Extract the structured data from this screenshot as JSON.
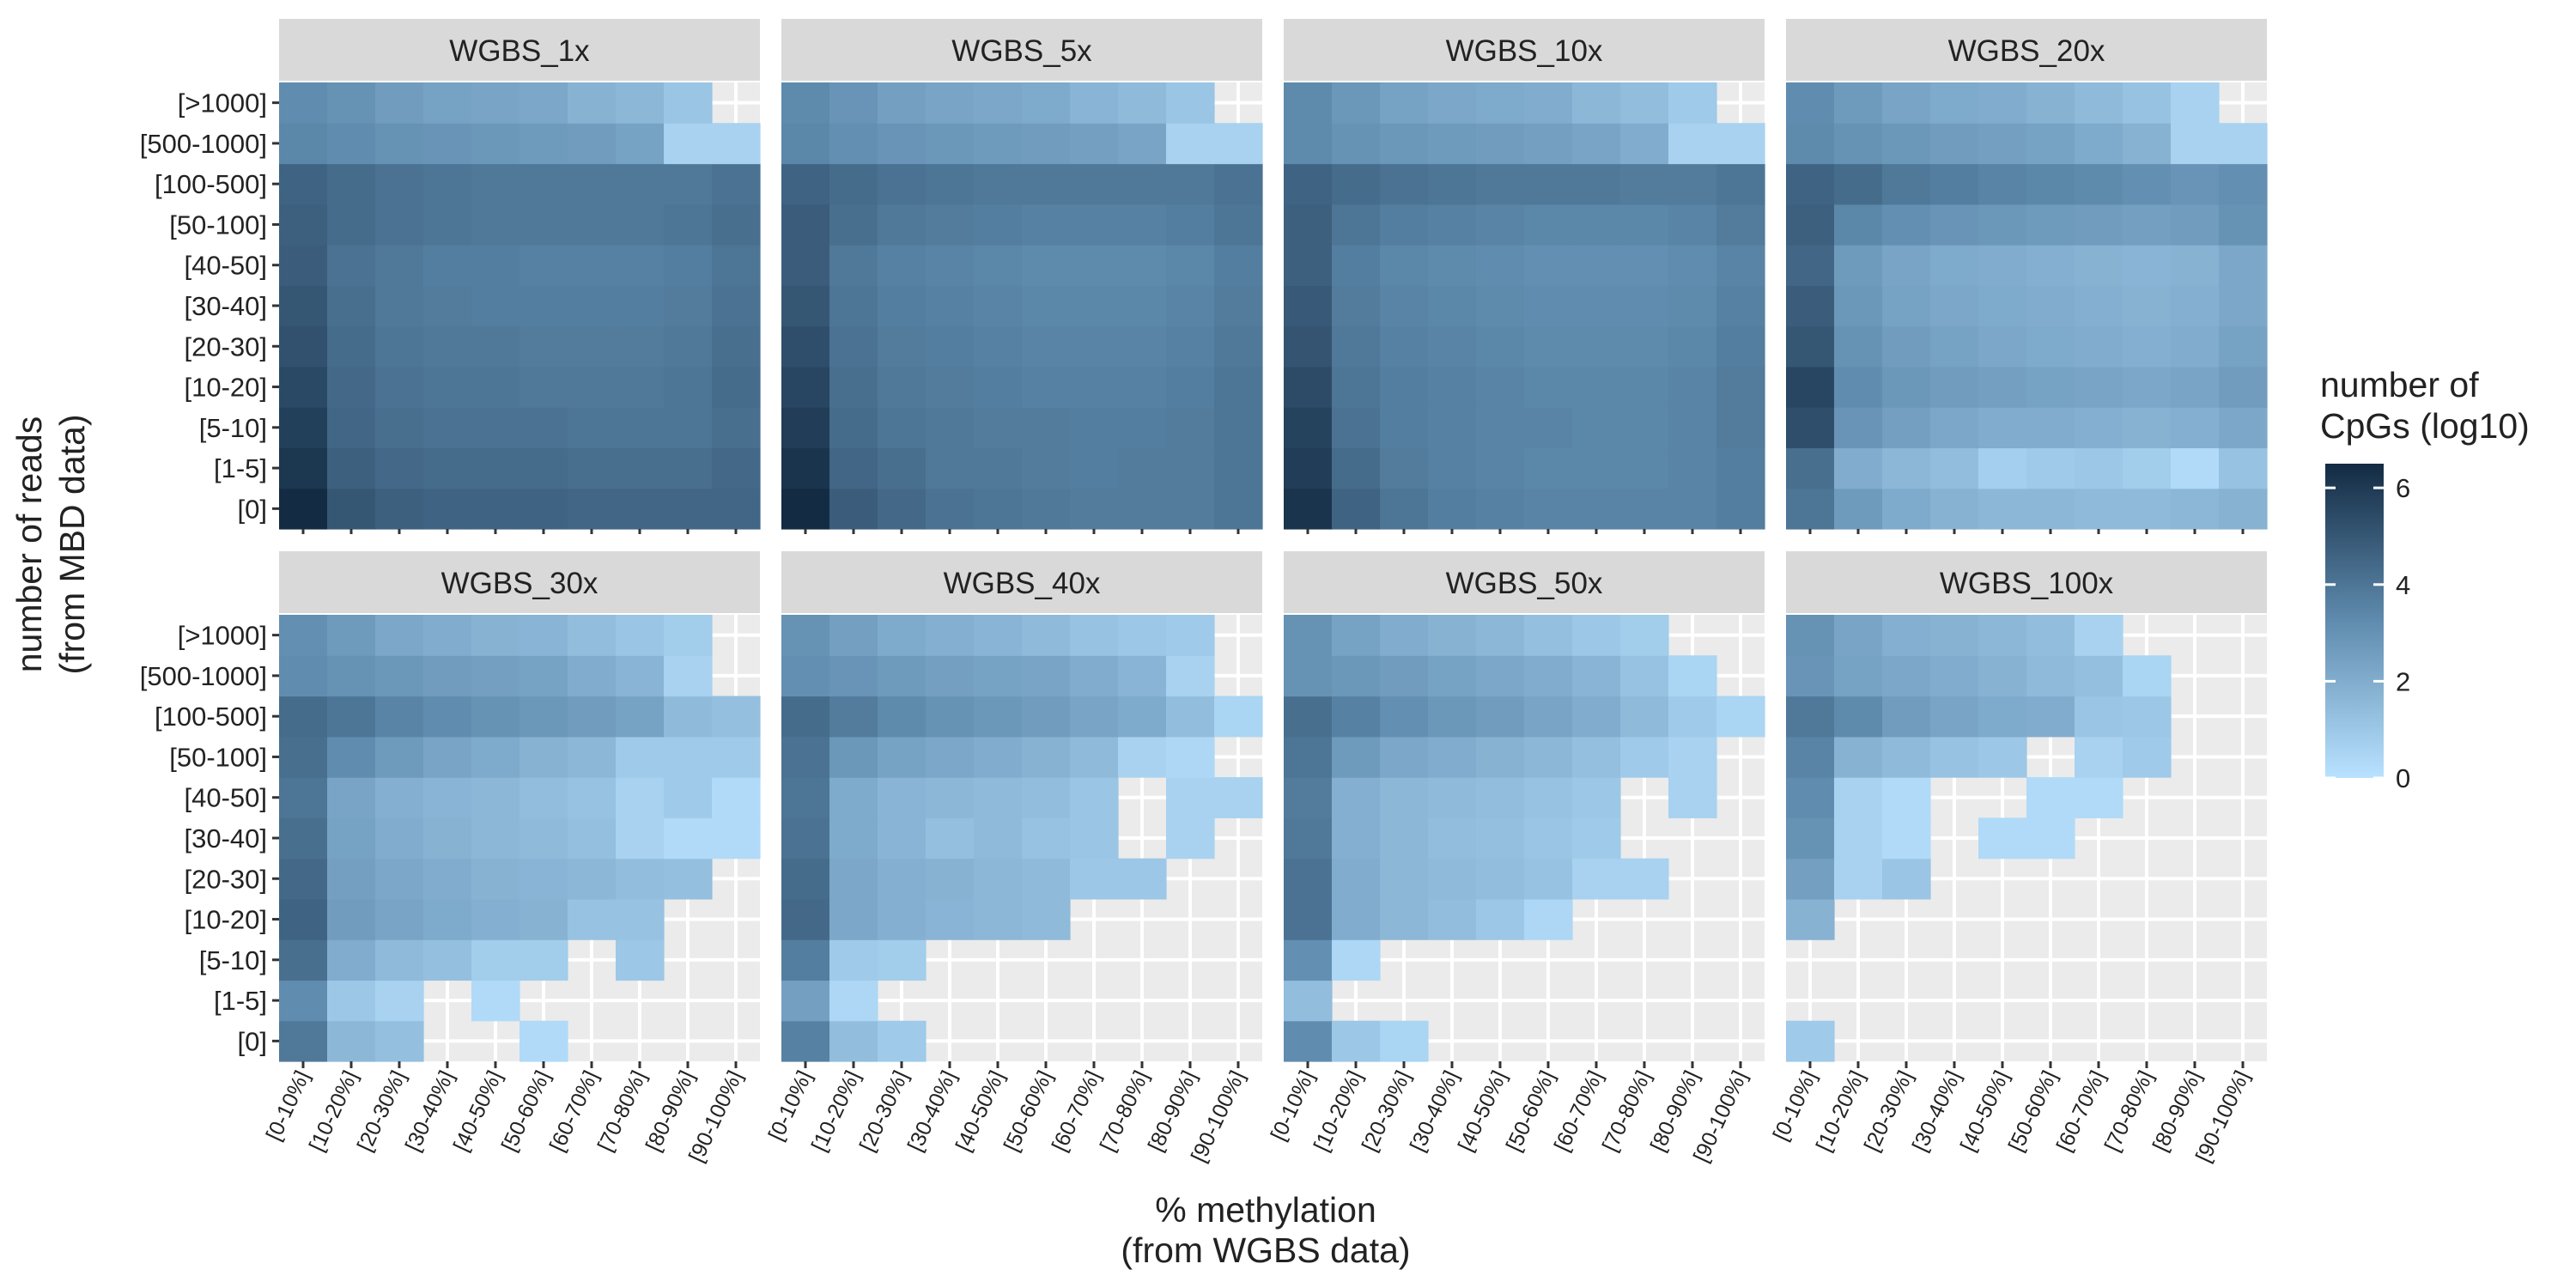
{
  "chart_data": {
    "type": "heatmap",
    "x_label_line1": "% methylation",
    "x_label_line2": "(from WGBS data)",
    "y_label_line1": "number of reads",
    "y_label_line2": "(from MBD data)",
    "legend": {
      "title_line1": "number of",
      "title_line2": "CpGs (log10)",
      "ticks": [
        0,
        2,
        4,
        6
      ],
      "range": [
        0,
        6.5
      ],
      "low_color": "#B8E2FF",
      "high_color": "#132B43",
      "position": "right"
    },
    "x_categories": [
      "[0-10%]",
      "[10-20%]",
      "[20-30%]",
      "[30-40%]",
      "[40-50%]",
      "[50-60%]",
      "[60-70%]",
      "[70-80%]",
      "[80-90%]",
      "[90-100%]"
    ],
    "y_categories": [
      "[0]",
      "[1-5]",
      "[5-10]",
      "[10-20]",
      "[20-30]",
      "[30-40]",
      "[40-50]",
      "[50-100]",
      "[100-500]",
      "[500-1000]",
      "[>1000]"
    ],
    "panels": [
      {
        "name": "WGBS_1x",
        "values": [
          [
            6.5,
            5.0,
            4.7,
            4.6,
            4.6,
            4.6,
            4.5,
            4.5,
            4.5,
            4.5
          ],
          [
            6.1,
            4.7,
            4.4,
            4.3,
            4.3,
            4.3,
            4.2,
            4.2,
            4.2,
            4.4
          ],
          [
            5.8,
            4.5,
            4.2,
            4.1,
            4.1,
            4.1,
            4.0,
            4.0,
            4.0,
            4.2
          ],
          [
            5.5,
            4.4,
            4.1,
            4.0,
            4.0,
            3.9,
            3.9,
            3.9,
            4.0,
            4.3
          ],
          [
            5.2,
            4.3,
            4.0,
            3.9,
            3.9,
            3.8,
            3.8,
            3.8,
            3.9,
            4.2
          ],
          [
            5.0,
            4.2,
            3.9,
            3.8,
            3.7,
            3.7,
            3.7,
            3.7,
            3.8,
            4.1
          ],
          [
            4.8,
            4.1,
            3.9,
            3.7,
            3.7,
            3.6,
            3.6,
            3.6,
            3.7,
            4.0
          ],
          [
            4.7,
            4.3,
            4.1,
            4.0,
            3.9,
            3.9,
            3.9,
            3.9,
            4.0,
            4.2
          ],
          [
            4.6,
            4.3,
            4.1,
            4.0,
            3.9,
            3.9,
            3.9,
            3.9,
            3.9,
            4.1
          ],
          [
            3.4,
            3.2,
            3.0,
            2.9,
            2.8,
            2.7,
            2.6,
            2.4,
            0.6,
            0.6
          ],
          [
            3.2,
            3.0,
            2.6,
            2.4,
            2.3,
            2.2,
            1.8,
            1.6,
            1.1,
            null
          ]
        ]
      },
      {
        "name": "WGBS_5x",
        "values": [
          [
            6.5,
            4.8,
            4.4,
            4.1,
            4.0,
            3.9,
            3.8,
            3.8,
            3.8,
            4.0
          ],
          [
            6.2,
            4.5,
            4.2,
            3.9,
            3.9,
            3.8,
            3.7,
            3.8,
            3.8,
            4.0
          ],
          [
            5.9,
            4.3,
            4.0,
            3.9,
            3.8,
            3.8,
            3.7,
            3.7,
            3.8,
            4.0
          ],
          [
            5.6,
            4.2,
            3.9,
            3.8,
            3.7,
            3.6,
            3.6,
            3.6,
            3.7,
            4.0
          ],
          [
            5.3,
            4.1,
            3.8,
            3.7,
            3.6,
            3.5,
            3.5,
            3.5,
            3.6,
            3.9
          ],
          [
            5.0,
            4.0,
            3.7,
            3.6,
            3.5,
            3.4,
            3.4,
            3.4,
            3.5,
            3.8
          ],
          [
            4.8,
            3.9,
            3.6,
            3.5,
            3.4,
            3.3,
            3.3,
            3.3,
            3.4,
            3.7
          ],
          [
            4.8,
            4.2,
            3.9,
            3.8,
            3.7,
            3.6,
            3.6,
            3.6,
            3.7,
            4.0
          ],
          [
            4.6,
            4.3,
            4.1,
            4.0,
            3.9,
            3.9,
            3.9,
            3.9,
            3.9,
            4.1
          ],
          [
            3.4,
            3.1,
            2.9,
            2.8,
            2.7,
            2.6,
            2.5,
            2.3,
            0.6,
            0.6
          ],
          [
            3.3,
            2.9,
            2.5,
            2.3,
            2.2,
            2.1,
            1.7,
            1.5,
            1.1,
            null
          ]
        ]
      },
      {
        "name": "WGBS_10x",
        "values": [
          [
            6.2,
            4.6,
            4.0,
            3.7,
            3.6,
            3.5,
            3.5,
            3.5,
            3.5,
            3.7
          ],
          [
            5.9,
            4.3,
            3.8,
            3.6,
            3.5,
            3.4,
            3.4,
            3.4,
            3.5,
            3.7
          ],
          [
            5.7,
            4.1,
            3.7,
            3.6,
            3.5,
            3.5,
            3.4,
            3.4,
            3.5,
            3.8
          ],
          [
            5.4,
            4.0,
            3.7,
            3.6,
            3.5,
            3.4,
            3.4,
            3.4,
            3.5,
            3.8
          ],
          [
            5.1,
            3.9,
            3.6,
            3.5,
            3.4,
            3.3,
            3.3,
            3.3,
            3.4,
            3.7
          ],
          [
            4.9,
            3.8,
            3.5,
            3.4,
            3.3,
            3.2,
            3.2,
            3.2,
            3.3,
            3.6
          ],
          [
            4.7,
            3.7,
            3.4,
            3.3,
            3.2,
            3.1,
            3.1,
            3.1,
            3.2,
            3.5
          ],
          [
            4.7,
            4.0,
            3.7,
            3.6,
            3.5,
            3.4,
            3.4,
            3.4,
            3.5,
            3.8
          ],
          [
            4.6,
            4.3,
            4.1,
            4.0,
            3.9,
            3.9,
            3.9,
            3.8,
            3.8,
            4.0
          ],
          [
            3.3,
            3.0,
            2.8,
            2.7,
            2.6,
            2.5,
            2.3,
            2.0,
            0.6,
            0.6
          ],
          [
            3.3,
            2.8,
            2.4,
            2.2,
            2.1,
            2.0,
            1.6,
            1.4,
            0.9,
            null
          ]
        ]
      },
      {
        "name": "WGBS_20x",
        "values": [
          [
            4.0,
            2.7,
            2.1,
            1.8,
            1.6,
            1.6,
            1.5,
            1.5,
            1.6,
            1.8
          ],
          [
            4.2,
            2.0,
            1.6,
            1.4,
            0.7,
            0.9,
            1.0,
            0.8,
            0.3,
            1.2
          ],
          [
            5.3,
            2.9,
            2.5,
            2.2,
            2.0,
            2.0,
            1.9,
            1.8,
            1.9,
            2.2
          ],
          [
            5.6,
            3.2,
            2.8,
            2.6,
            2.5,
            2.4,
            2.3,
            2.2,
            2.3,
            2.6
          ],
          [
            5.0,
            3.0,
            2.6,
            2.4,
            2.2,
            2.1,
            2.0,
            1.9,
            2.0,
            2.4
          ],
          [
            4.8,
            2.8,
            2.4,
            2.2,
            2.1,
            2.0,
            1.9,
            1.8,
            1.9,
            2.2
          ],
          [
            4.5,
            2.7,
            2.3,
            2.1,
            2.0,
            1.9,
            1.8,
            1.7,
            1.8,
            2.2
          ],
          [
            4.7,
            3.4,
            3.1,
            2.9,
            2.8,
            2.7,
            2.6,
            2.5,
            2.6,
            3.0
          ],
          [
            4.6,
            4.3,
            3.9,
            3.7,
            3.5,
            3.4,
            3.3,
            3.1,
            2.9,
            3.1
          ],
          [
            3.3,
            3.0,
            2.8,
            2.6,
            2.5,
            2.4,
            2.1,
            1.8,
            0.6,
            0.6
          ],
          [
            3.2,
            2.7,
            2.3,
            2.1,
            2.0,
            1.8,
            1.5,
            1.2,
            0.6,
            null
          ]
        ]
      },
      {
        "name": "WGBS_30x",
        "values": [
          [
            3.9,
            1.6,
            1.3,
            null,
            null,
            0.3,
            null,
            null,
            null,
            null
          ],
          [
            3.2,
            1.0,
            0.6,
            null,
            0.3,
            null,
            null,
            null,
            null,
            null
          ],
          [
            4.2,
            2.0,
            1.5,
            1.3,
            0.8,
            0.8,
            null,
            1.0,
            null,
            null
          ],
          [
            4.6,
            2.6,
            2.3,
            2.1,
            1.9,
            1.8,
            1.2,
            1.2,
            null,
            null
          ],
          [
            4.4,
            2.5,
            2.2,
            2.0,
            1.8,
            1.7,
            1.6,
            1.4,
            1.3,
            null
          ],
          [
            4.2,
            2.4,
            2.0,
            1.8,
            1.6,
            1.5,
            1.3,
            0.6,
            0.3,
            0.3
          ],
          [
            4.0,
            2.3,
            1.9,
            1.7,
            1.6,
            1.4,
            1.2,
            0.6,
            0.9,
            0.3
          ],
          [
            4.2,
            3.2,
            2.7,
            2.3,
            2.1,
            1.8,
            1.6,
            0.9,
            0.9,
            0.9
          ],
          [
            4.3,
            4.0,
            3.5,
            3.2,
            3.0,
            2.8,
            2.6,
            2.4,
            1.5,
            1.3
          ],
          [
            3.2,
            3.0,
            2.8,
            2.6,
            2.5,
            2.4,
            2.0,
            1.7,
            0.6,
            null
          ],
          [
            3.1,
            2.7,
            2.2,
            2.0,
            1.8,
            1.7,
            1.4,
            1.1,
            0.8,
            null
          ]
        ]
      },
      {
        "name": "WGBS_40x",
        "values": [
          [
            3.6,
            1.4,
            0.9,
            null,
            null,
            null,
            null,
            null,
            null,
            null
          ],
          [
            2.5,
            0.4,
            null,
            null,
            null,
            null,
            null,
            null,
            null,
            null
          ],
          [
            3.7,
            0.9,
            0.8,
            null,
            null,
            null,
            null,
            null,
            null,
            null
          ],
          [
            4.4,
            2.2,
            1.9,
            1.7,
            1.6,
            1.5,
            null,
            null,
            null,
            null
          ],
          [
            4.3,
            2.2,
            1.9,
            1.8,
            1.6,
            1.5,
            1.0,
            1.0,
            null,
            null
          ],
          [
            4.1,
            2.1,
            1.7,
            1.3,
            1.5,
            1.2,
            1.1,
            null,
            0.6,
            null
          ],
          [
            4.0,
            2.1,
            1.7,
            1.6,
            1.5,
            1.4,
            1.1,
            null,
            0.6,
            0.6
          ],
          [
            4.1,
            2.8,
            2.4,
            2.2,
            2.0,
            1.8,
            1.5,
            0.6,
            0.4,
            null
          ],
          [
            4.3,
            3.8,
            3.3,
            3.0,
            2.8,
            2.6,
            2.3,
            2.1,
            1.4,
            0.5
          ],
          [
            3.1,
            2.9,
            2.7,
            2.5,
            2.4,
            2.3,
            2.0,
            1.7,
            0.6,
            null
          ],
          [
            3.0,
            2.5,
            2.1,
            1.9,
            1.7,
            1.5,
            1.2,
            1.0,
            0.9,
            null
          ]
        ]
      },
      {
        "name": "WGBS_50x",
        "values": [
          [
            3.2,
            1.0,
            0.5,
            null,
            null,
            null,
            null,
            null,
            null,
            null
          ],
          [
            1.4,
            null,
            null,
            null,
            null,
            null,
            null,
            null,
            null,
            null
          ],
          [
            3.1,
            0.4,
            null,
            null,
            null,
            null,
            null,
            null,
            null,
            null
          ],
          [
            4.1,
            2.0,
            1.6,
            1.4,
            1.0,
            0.4,
            null,
            null,
            null,
            null
          ],
          [
            4.1,
            2.0,
            1.6,
            1.5,
            1.4,
            1.2,
            0.6,
            0.6,
            null,
            null
          ],
          [
            3.9,
            1.9,
            1.6,
            1.4,
            1.3,
            1.1,
            0.9,
            null,
            null,
            null
          ],
          [
            3.8,
            1.9,
            1.6,
            1.5,
            1.4,
            1.2,
            1.0,
            null,
            0.6,
            null
          ],
          [
            4.0,
            2.7,
            2.2,
            2.0,
            1.8,
            1.6,
            1.3,
            0.9,
            0.6,
            null
          ],
          [
            4.2,
            3.6,
            3.1,
            2.8,
            2.6,
            2.3,
            2.0,
            1.5,
            0.9,
            0.5
          ],
          [
            3.0,
            2.8,
            2.6,
            2.4,
            2.2,
            2.0,
            1.7,
            1.2,
            0.5,
            null
          ],
          [
            3.0,
            2.4,
            2.0,
            1.8,
            1.6,
            1.3,
            1.0,
            0.8,
            null,
            null
          ]
        ]
      },
      {
        "name": "WGBS_100x",
        "values": [
          [
            0.9,
            null,
            null,
            null,
            null,
            null,
            null,
            null,
            null,
            null
          ],
          [
            null,
            null,
            null,
            null,
            null,
            null,
            null,
            null,
            null,
            null
          ],
          [
            null,
            null,
            null,
            null,
            null,
            null,
            null,
            null,
            null,
            null
          ],
          [
            1.8,
            null,
            null,
            null,
            null,
            null,
            null,
            null,
            null,
            null
          ],
          [
            2.5,
            0.6,
            1.1,
            null,
            null,
            null,
            null,
            null,
            null,
            null
          ],
          [
            3.0,
            0.6,
            0.3,
            null,
            0.3,
            0.3,
            null,
            null,
            null,
            null
          ],
          [
            3.2,
            0.6,
            0.3,
            null,
            null,
            0.3,
            0.3,
            null,
            null,
            null
          ],
          [
            3.5,
            1.8,
            1.5,
            1.2,
            1.0,
            null,
            0.6,
            0.9,
            null,
            null
          ],
          [
            3.9,
            3.3,
            2.6,
            2.3,
            2.1,
            2.0,
            1.1,
            1.0,
            null,
            null
          ],
          [
            2.9,
            2.4,
            2.2,
            2.0,
            1.8,
            1.5,
            1.3,
            0.5,
            null,
            null
          ],
          [
            3.0,
            2.3,
            1.9,
            1.8,
            1.6,
            1.4,
            0.6,
            null,
            null,
            null
          ]
        ]
      }
    ]
  }
}
